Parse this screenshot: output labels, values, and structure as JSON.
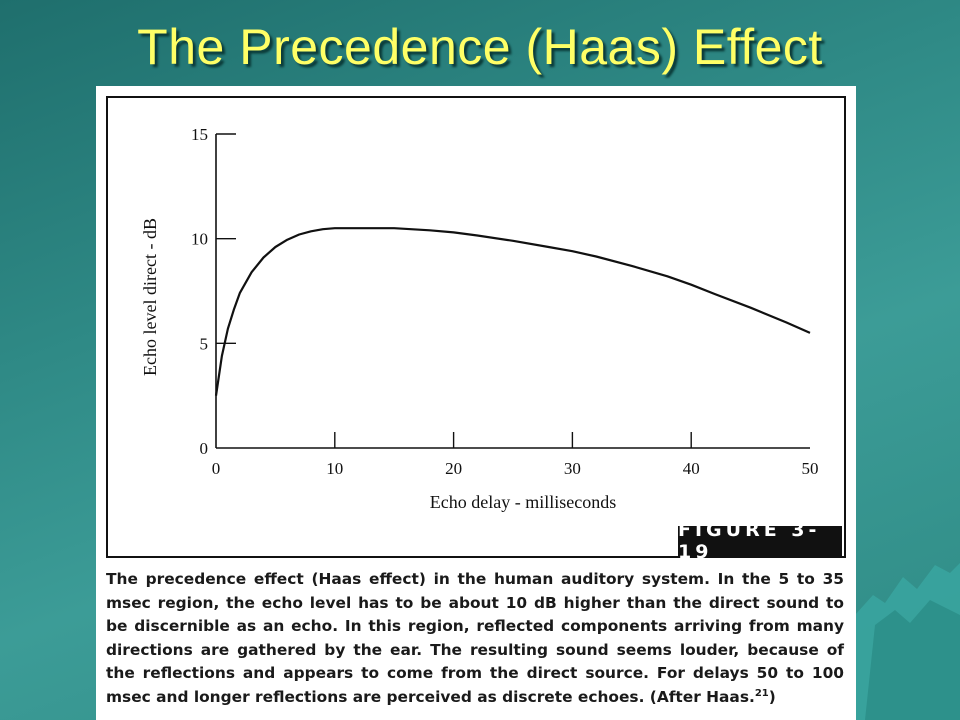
{
  "slide": {
    "title": "The Precedence (Haas) Effect"
  },
  "figure": {
    "tag": "FIGURE 3-19",
    "caption": {
      "text": "The precedence effect (Haas effect) in the human auditory system. In the 5 to 35 msec region, the echo level has to be about 10 dB higher than the direct sound to be discernible as an echo. In this region, reflected components arriving from many directions are gathered by the ear. The resulting sound seems louder, because of the reflections and appears to come from the direct source. For delays 50 to 100 msec and longer reflections are perceived as discrete echoes. (After Haas.",
      "ref": "21",
      "close": ")"
    }
  },
  "chart_data": {
    "type": "line",
    "xlabel": "Echo delay - milliseconds",
    "ylabel": "Echo level direct - dB",
    "xlim": [
      0,
      50
    ],
    "ylim": [
      0,
      15
    ],
    "x_ticks": [
      0,
      10,
      20,
      30,
      40,
      50
    ],
    "y_ticks": [
      0,
      5,
      10,
      15
    ],
    "grid": false,
    "series": [
      {
        "x": [
          0,
          0.5,
          1,
          1.5,
          2,
          3,
          4,
          5,
          6,
          7,
          8,
          9,
          10,
          12,
          15,
          18,
          20,
          22,
          25,
          28,
          30,
          32,
          35,
          38,
          40,
          42,
          45,
          48,
          50
        ],
        "y": [
          2.5,
          4.4,
          5.7,
          6.6,
          7.4,
          8.4,
          9.1,
          9.6,
          9.95,
          10.2,
          10.35,
          10.45,
          10.5,
          10.5,
          10.5,
          10.4,
          10.3,
          10.15,
          9.9,
          9.6,
          9.4,
          9.15,
          8.7,
          8.2,
          7.8,
          7.35,
          6.7,
          6.0,
          5.5
        ]
      }
    ]
  }
}
